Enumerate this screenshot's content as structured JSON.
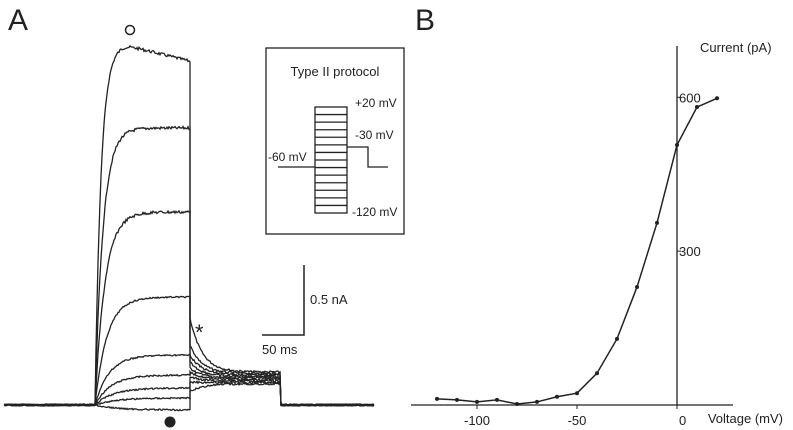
{
  "panel_a": {
    "label": "A",
    "protocol": {
      "title": "Type II protocol",
      "levels": [
        "+20 mV",
        "-30 mV",
        "-60 mV",
        "-120 mV"
      ]
    },
    "scale_current": "0.5 nA",
    "scale_time": "50 ms",
    "asterisk": "*"
  },
  "chart_data": {
    "type": "line",
    "label": "B",
    "x_label": "Voltage (mV)",
    "y_label": "Current (pA)",
    "x": [
      -120,
      -110,
      -100,
      -90,
      -80,
      -70,
      -60,
      -50,
      -40,
      -30,
      -20,
      -10,
      0,
      10,
      20
    ],
    "series": [
      {
        "color": "#222222",
        "values": [
          12,
          10,
          6,
          10,
          2,
          6,
          16,
          23,
          62,
          129,
          230,
          355,
          507,
          581,
          598
        ]
      }
    ],
    "xlim": [
      -133,
      28
    ],
    "ylim": [
      0,
      700
    ],
    "xticks": [
      -100,
      -50,
      0
    ],
    "yticks": [
      300,
      600
    ]
  }
}
